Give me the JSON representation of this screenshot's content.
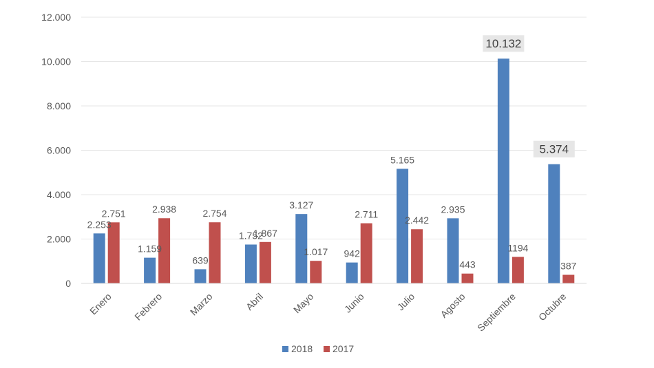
{
  "chart_data": {
    "type": "bar",
    "categories": [
      "Enero",
      "Febrero",
      "Marzo",
      "Abril",
      "Mayo",
      "Junio",
      "Julio",
      "Agosto",
      "Septiembre",
      "Octubre"
    ],
    "series": [
      {
        "name": "2018",
        "color": "#4F81BD",
        "values": [
          2253,
          1159,
          639,
          1752,
          3127,
          942,
          5165,
          2935,
          10132,
          5374
        ],
        "labels": [
          "2.253",
          "1.159",
          "639",
          "1.752",
          "3.127",
          "942",
          "5.165",
          "2.935",
          "10.132",
          "5.374"
        ]
      },
      {
        "name": "2017",
        "color": "#C0504D",
        "values": [
          2751,
          2938,
          2754,
          1867,
          1017,
          2711,
          2442,
          443,
          1194,
          387
        ],
        "labels": [
          "2.751",
          "2.938",
          "2.754",
          "1.867",
          "1.017",
          "2.711",
          "2.442",
          "443",
          "1194",
          "387"
        ]
      }
    ],
    "highlighted_labels": [
      "10.132",
      "5.374"
    ],
    "ylim": [
      0,
      12000
    ],
    "yticks": [
      0,
      2000,
      4000,
      6000,
      8000,
      10000,
      12000
    ],
    "ytick_labels": [
      "0",
      "2.000",
      "4.000",
      "6.000",
      "8.000",
      "10.000",
      "12.000"
    ],
    "grid": true,
    "legend_position": "bottom",
    "title": "",
    "xlabel": "",
    "ylabel": ""
  }
}
